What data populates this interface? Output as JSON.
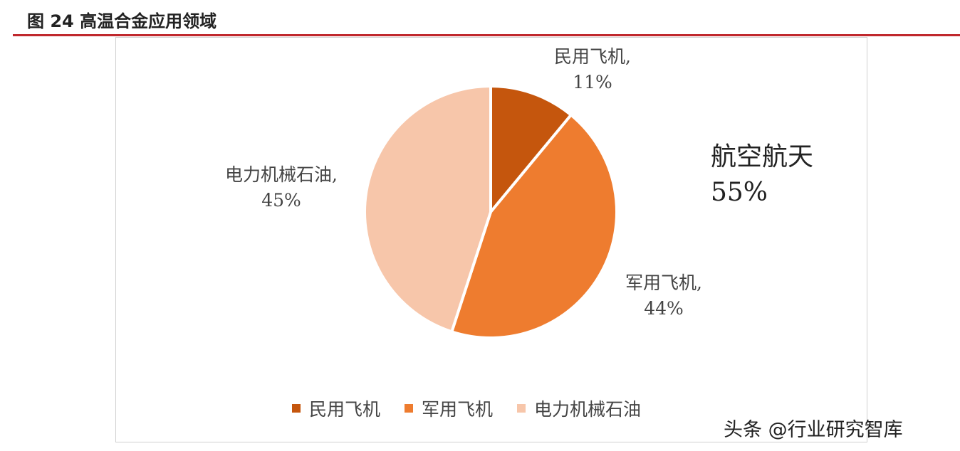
{
  "figure_title": "图  24 高温合金应用领域",
  "chart_data": {
    "type": "pie",
    "start_angle_deg": 0,
    "direction": "clockwise",
    "slices": [
      {
        "name": "民用飞机",
        "value": 11,
        "label": "11%",
        "color": "#c5560d"
      },
      {
        "name": "军用飞机",
        "value": 44,
        "label": "44%",
        "color": "#ee7c2f"
      },
      {
        "name": "电力机械石油",
        "value": 45,
        "label": "45%",
        "color": "#f7c6aa"
      }
    ],
    "annotations": [
      {
        "text": "航空航天",
        "value_label": "55%"
      }
    ],
    "legend": {
      "position": "bottom"
    }
  },
  "watermark": "头条 @行业研究智库"
}
